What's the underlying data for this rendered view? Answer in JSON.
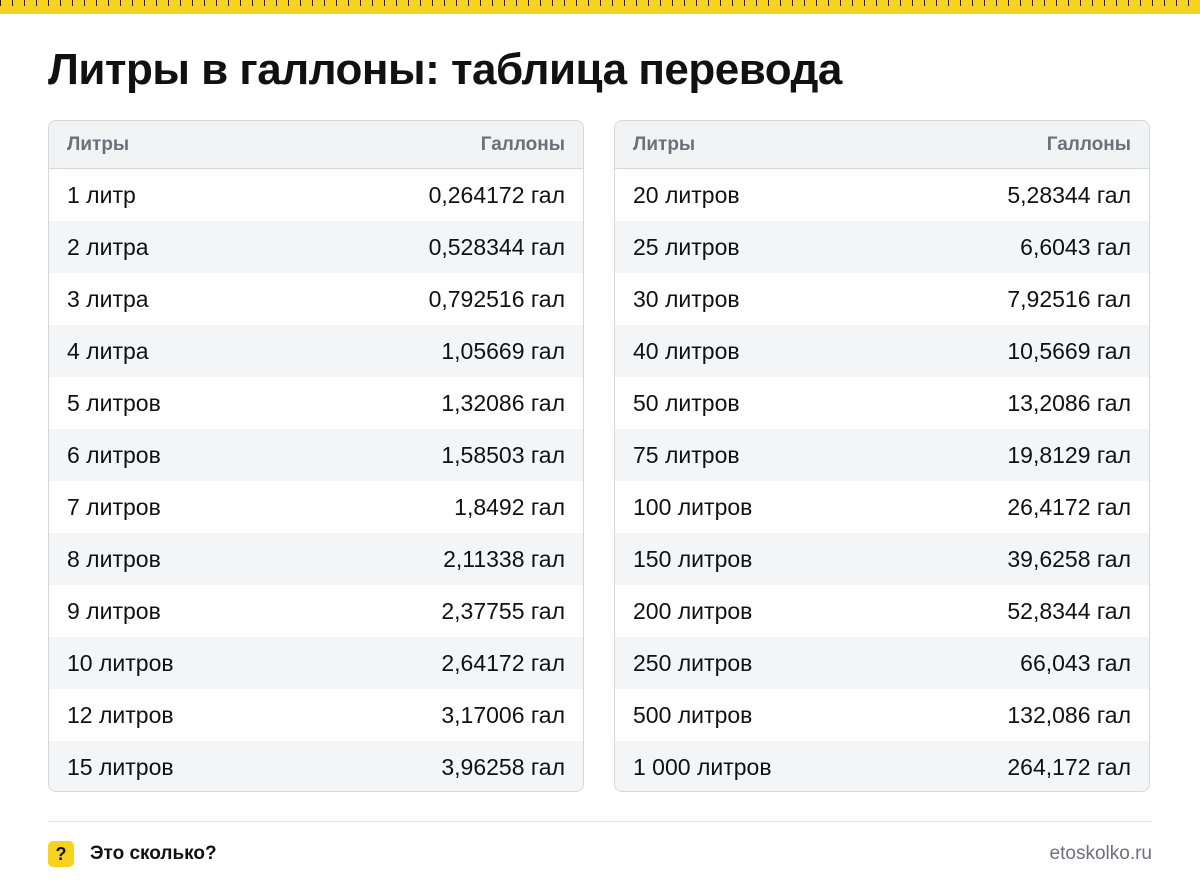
{
  "title": "Литры в галлоны: таблица перевода",
  "tables": [
    {
      "header": {
        "liters": "Литры",
        "gallons": "Галлоны"
      },
      "rows": [
        {
          "liters": "1 литр",
          "gallons": "0,264172 гал"
        },
        {
          "liters": "2 литра",
          "gallons": "0,528344 гал"
        },
        {
          "liters": "3 литра",
          "gallons": "0,792516 гал"
        },
        {
          "liters": "4 литра",
          "gallons": "1,05669 гал"
        },
        {
          "liters": "5 литров",
          "gallons": "1,32086 гал"
        },
        {
          "liters": "6 литров",
          "gallons": "1,58503 гал"
        },
        {
          "liters": "7 литров",
          "gallons": "1,8492 гал"
        },
        {
          "liters": "8 литров",
          "gallons": "2,11338 гал"
        },
        {
          "liters": "9 литров",
          "gallons": "2,37755 гал"
        },
        {
          "liters": "10 литров",
          "gallons": "2,64172 гал"
        },
        {
          "liters": "12 литров",
          "gallons": "3,17006 гал"
        },
        {
          "liters": "15 литров",
          "gallons": "3,96258 гал"
        }
      ]
    },
    {
      "header": {
        "liters": "Литры",
        "gallons": "Галлоны"
      },
      "rows": [
        {
          "liters": "20 литров",
          "gallons": "5,28344 гал"
        },
        {
          "liters": "25 литров",
          "gallons": "6,6043 гал"
        },
        {
          "liters": "30 литров",
          "gallons": "7,92516 гал"
        },
        {
          "liters": "40 литров",
          "gallons": "10,5669 гал"
        },
        {
          "liters": "50 литров",
          "gallons": "13,2086 гал"
        },
        {
          "liters": "75 литров",
          "gallons": "19,8129 гал"
        },
        {
          "liters": "100 литров",
          "gallons": "26,4172 гал"
        },
        {
          "liters": "150 литров",
          "gallons": "39,6258 гал"
        },
        {
          "liters": "200 литров",
          "gallons": "52,8344 гал"
        },
        {
          "liters": "250 литров",
          "gallons": "66,043 гал"
        },
        {
          "liters": "500 литров",
          "gallons": "132,086 гал"
        },
        {
          "liters": "1 000 литров",
          "gallons": "264,172 гал"
        }
      ]
    }
  ],
  "footer": {
    "brand_icon": "?",
    "brand_name": "Это сколько?",
    "site": "etoskolko.ru"
  },
  "colors": {
    "accent": "#F7D21E",
    "header_text": "#6B7079",
    "stripe": "#F4F5F7",
    "border": "#D4D7DC"
  }
}
